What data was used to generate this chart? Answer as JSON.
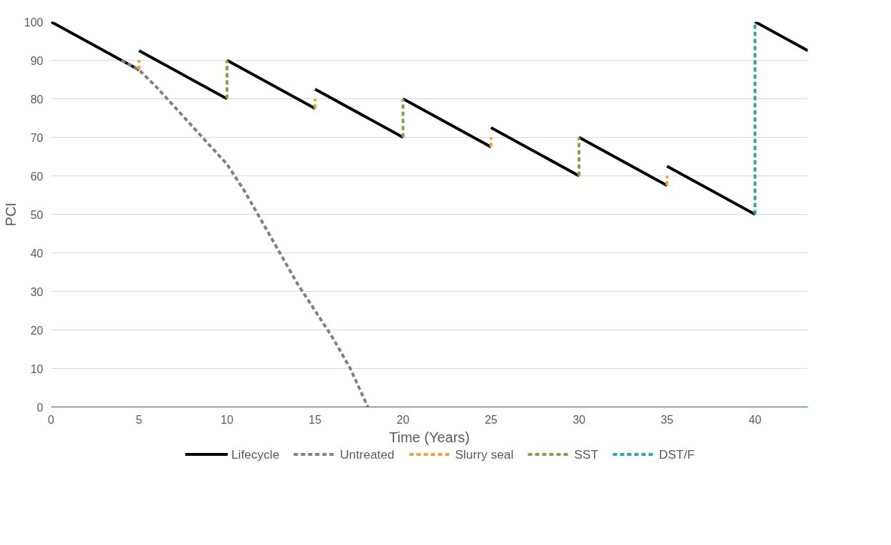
{
  "chart_data": {
    "type": "line",
    "xlabel": "Time (Years)",
    "ylabel": "PCI",
    "xlim": [
      0,
      43
    ],
    "ylim": [
      0,
      100
    ],
    "xticks": [
      0,
      5,
      10,
      15,
      20,
      25,
      30,
      35,
      40
    ],
    "yticks": [
      0,
      10,
      20,
      30,
      40,
      50,
      60,
      70,
      80,
      90,
      100
    ],
    "grid": "y",
    "legend": "bottom",
    "marker": "none",
    "series": [
      {
        "name": "Lifecycle",
        "color": "#000000",
        "line_style": "solid",
        "x": [
          0,
          5,
          null,
          5,
          10,
          null,
          10,
          15,
          null,
          15,
          20,
          null,
          20,
          25,
          null,
          25,
          30,
          null,
          30,
          35,
          null,
          35,
          40,
          null,
          40,
          43
        ],
        "values": [
          100,
          87.5,
          null,
          92.5,
          80,
          null,
          90,
          77.5,
          null,
          82.5,
          70,
          null,
          80,
          67.5,
          null,
          72.5,
          60,
          null,
          70,
          57.5,
          null,
          62.5,
          50,
          null,
          100,
          92.5
        ]
      },
      {
        "name": "Untreated",
        "color": "#808080",
        "line_style": "dashed",
        "x": [
          4,
          5,
          6,
          7,
          8,
          9,
          10,
          11,
          12,
          13,
          14,
          15,
          16,
          17,
          18
        ],
        "values": [
          90,
          87.5,
          83,
          78,
          73,
          68,
          63,
          56,
          48,
          40,
          32,
          25,
          18,
          10,
          0
        ]
      },
      {
        "name": "Slurry seal",
        "color": "#f4a236",
        "line_style": "dashed",
        "x": [
          5,
          5,
          null,
          15,
          15,
          null,
          25,
          25,
          null,
          35,
          35
        ],
        "values": [
          87.5,
          90,
          null,
          77.5,
          80,
          null,
          67.5,
          70,
          null,
          57.5,
          60
        ]
      },
      {
        "name": "SST",
        "color": "#7ea346",
        "line_style": "dashed",
        "x": [
          10,
          10,
          null,
          20,
          20,
          null,
          30,
          30
        ],
        "values": [
          80,
          90,
          null,
          70,
          80,
          null,
          60,
          70
        ]
      },
      {
        "name": "DST/F",
        "color": "#2aa6a6",
        "line_style": "dashed",
        "x": [
          40,
          40
        ],
        "values": [
          50,
          100
        ]
      }
    ]
  }
}
